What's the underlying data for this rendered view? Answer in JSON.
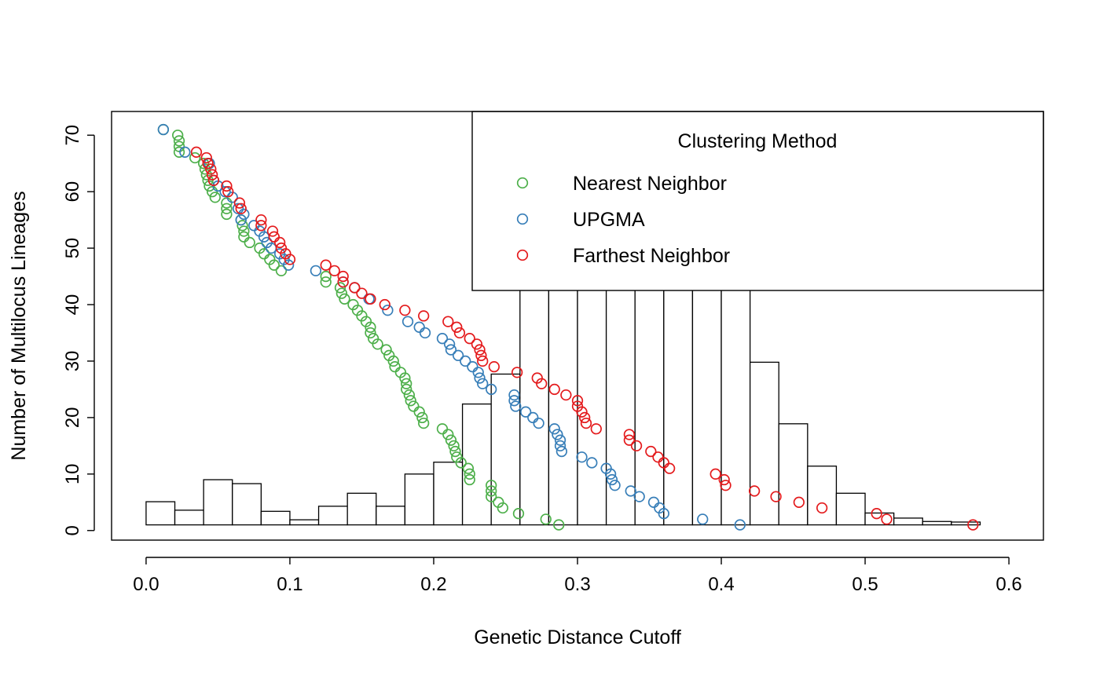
{
  "chart_data": {
    "type": "scatter",
    "title": "",
    "xlabel": "Genetic Distance Cutoff",
    "ylabel": "Number of Multilocus Lineages",
    "xlim": [
      -0.024,
      0.624
    ],
    "ylim": [
      -1.7,
      74.2
    ],
    "x_ticks": [
      0.0,
      0.1,
      0.2,
      0.3,
      0.4,
      0.5,
      0.6
    ],
    "x_tick_labels": [
      "0.0",
      "0.1",
      "0.2",
      "0.3",
      "0.4",
      "0.5",
      "0.6"
    ],
    "y_ticks": [
      0,
      10,
      20,
      30,
      40,
      50,
      60,
      70
    ],
    "y_tick_labels": [
      "0",
      "10",
      "20",
      "30",
      "40",
      "50",
      "60",
      "70"
    ],
    "grid": false,
    "legend": {
      "title": "Clustering Method",
      "placement": "top-right",
      "entries": [
        "Nearest Neighbor",
        "UPGMA",
        "Farthest Neighbor"
      ]
    },
    "histogram": {
      "bin_width": 0.02,
      "bin_starts": [
        0.0,
        0.02,
        0.04,
        0.06,
        0.08,
        0.1,
        0.12,
        0.14,
        0.16,
        0.18,
        0.2,
        0.22,
        0.24,
        0.26,
        0.28,
        0.3,
        0.32,
        0.34,
        0.36,
        0.38,
        0.4,
        0.42,
        0.44,
        0.46,
        0.48,
        0.5,
        0.52,
        0.54,
        0.56
      ],
      "baseline": 1,
      "tops": [
        5.1,
        3.6,
        9.0,
        8.3,
        3.4,
        1.9,
        4.3,
        6.6,
        4.3,
        10.0,
        12.1,
        22.4,
        27.7,
        43,
        43,
        43,
        43,
        43,
        43,
        43,
        43,
        29.8,
        18.9,
        11.4,
        6.6,
        3.1,
        2.2,
        1.6,
        1.5
      ],
      "note_extends_behind_legend": true
    },
    "series": [
      {
        "name": "Nearest Neighbor",
        "color": "#4DAF4A",
        "points": [
          [
            0.012,
            71
          ],
          [
            0.022,
            70
          ],
          [
            0.023,
            69
          ],
          [
            0.023,
            68
          ],
          [
            0.023,
            67
          ],
          [
            0.034,
            66
          ],
          [
            0.04,
            65
          ],
          [
            0.041,
            64
          ],
          [
            0.042,
            63
          ],
          [
            0.043,
            62
          ],
          [
            0.044,
            61
          ],
          [
            0.046,
            60
          ],
          [
            0.048,
            59
          ],
          [
            0.056,
            58
          ],
          [
            0.056,
            57
          ],
          [
            0.056,
            56
          ],
          [
            0.066,
            55
          ],
          [
            0.067,
            54
          ],
          [
            0.068,
            53
          ],
          [
            0.068,
            52
          ],
          [
            0.072,
            51
          ],
          [
            0.079,
            50
          ],
          [
            0.082,
            49
          ],
          [
            0.086,
            48
          ],
          [
            0.089,
            47
          ],
          [
            0.094,
            46
          ],
          [
            0.125,
            45
          ],
          [
            0.125,
            44
          ],
          [
            0.135,
            43
          ],
          [
            0.136,
            42
          ],
          [
            0.138,
            41
          ],
          [
            0.144,
            40
          ],
          [
            0.147,
            39
          ],
          [
            0.15,
            38
          ],
          [
            0.153,
            37
          ],
          [
            0.156,
            36
          ],
          [
            0.156,
            35
          ],
          [
            0.158,
            34
          ],
          [
            0.161,
            33
          ],
          [
            0.167,
            32
          ],
          [
            0.169,
            31
          ],
          [
            0.172,
            30
          ],
          [
            0.173,
            29
          ],
          [
            0.177,
            28
          ],
          [
            0.18,
            27
          ],
          [
            0.181,
            26
          ],
          [
            0.181,
            25
          ],
          [
            0.183,
            24
          ],
          [
            0.184,
            23
          ],
          [
            0.186,
            22
          ],
          [
            0.19,
            21
          ],
          [
            0.192,
            20
          ],
          [
            0.193,
            19
          ],
          [
            0.206,
            18
          ],
          [
            0.21,
            17
          ],
          [
            0.212,
            16
          ],
          [
            0.214,
            15
          ],
          [
            0.215,
            14
          ],
          [
            0.216,
            13
          ],
          [
            0.219,
            12
          ],
          [
            0.224,
            11
          ],
          [
            0.225,
            10
          ],
          [
            0.225,
            9
          ],
          [
            0.24,
            8
          ],
          [
            0.24,
            7
          ],
          [
            0.24,
            6
          ],
          [
            0.245,
            5
          ],
          [
            0.248,
            4
          ],
          [
            0.259,
            3
          ],
          [
            0.278,
            2
          ],
          [
            0.287,
            1
          ]
        ]
      },
      {
        "name": "UPGMA",
        "color": "#377EB8",
        "points": [
          [
            0.012,
            71
          ],
          [
            0.027,
            67
          ],
          [
            0.044,
            65
          ],
          [
            0.047,
            62
          ],
          [
            0.05,
            61
          ],
          [
            0.055,
            60
          ],
          [
            0.06,
            59
          ],
          [
            0.064,
            57
          ],
          [
            0.068,
            56
          ],
          [
            0.066,
            55
          ],
          [
            0.075,
            54
          ],
          [
            0.079,
            53
          ],
          [
            0.082,
            52
          ],
          [
            0.084,
            51
          ],
          [
            0.087,
            50
          ],
          [
            0.093,
            49
          ],
          [
            0.096,
            48
          ],
          [
            0.099,
            47
          ],
          [
            0.118,
            46
          ],
          [
            0.137,
            44
          ],
          [
            0.145,
            43
          ],
          [
            0.155,
            41
          ],
          [
            0.168,
            39
          ],
          [
            0.182,
            37
          ],
          [
            0.19,
            36
          ],
          [
            0.194,
            35
          ],
          [
            0.206,
            34
          ],
          [
            0.211,
            33
          ],
          [
            0.212,
            32
          ],
          [
            0.217,
            31
          ],
          [
            0.222,
            30
          ],
          [
            0.227,
            29
          ],
          [
            0.231,
            28
          ],
          [
            0.232,
            27
          ],
          [
            0.234,
            26
          ],
          [
            0.24,
            25
          ],
          [
            0.256,
            24
          ],
          [
            0.256,
            23
          ],
          [
            0.257,
            22
          ],
          [
            0.264,
            21
          ],
          [
            0.269,
            20
          ],
          [
            0.273,
            19
          ],
          [
            0.284,
            18
          ],
          [
            0.286,
            17
          ],
          [
            0.288,
            16
          ],
          [
            0.288,
            15
          ],
          [
            0.289,
            14
          ],
          [
            0.303,
            13
          ],
          [
            0.31,
            12
          ],
          [
            0.32,
            11
          ],
          [
            0.323,
            10
          ],
          [
            0.324,
            9
          ],
          [
            0.326,
            8
          ],
          [
            0.337,
            7
          ],
          [
            0.343,
            6
          ],
          [
            0.353,
            5
          ],
          [
            0.357,
            4
          ],
          [
            0.36,
            3
          ],
          [
            0.387,
            2
          ],
          [
            0.413,
            1
          ]
        ]
      },
      {
        "name": "Farthest Neighbor",
        "color": "#E41A1C",
        "points": [
          [
            0.035,
            67
          ],
          [
            0.042,
            66
          ],
          [
            0.043,
            65
          ],
          [
            0.045,
            64
          ],
          [
            0.046,
            63
          ],
          [
            0.047,
            62
          ],
          [
            0.056,
            61
          ],
          [
            0.057,
            60
          ],
          [
            0.065,
            58
          ],
          [
            0.066,
            57
          ],
          [
            0.08,
            55
          ],
          [
            0.08,
            54
          ],
          [
            0.088,
            53
          ],
          [
            0.089,
            52
          ],
          [
            0.093,
            51
          ],
          [
            0.094,
            50
          ],
          [
            0.097,
            49
          ],
          [
            0.1,
            48
          ],
          [
            0.125,
            47
          ],
          [
            0.131,
            46
          ],
          [
            0.137,
            45
          ],
          [
            0.137,
            44
          ],
          [
            0.145,
            43
          ],
          [
            0.15,
            42
          ],
          [
            0.156,
            41
          ],
          [
            0.166,
            40
          ],
          [
            0.18,
            39
          ],
          [
            0.193,
            38
          ],
          [
            0.21,
            37
          ],
          [
            0.216,
            36
          ],
          [
            0.218,
            35
          ],
          [
            0.225,
            34
          ],
          [
            0.23,
            33
          ],
          [
            0.232,
            32
          ],
          [
            0.233,
            31
          ],
          [
            0.234,
            30
          ],
          [
            0.242,
            29
          ],
          [
            0.258,
            28
          ],
          [
            0.272,
            27
          ],
          [
            0.275,
            26
          ],
          [
            0.284,
            25
          ],
          [
            0.292,
            24
          ],
          [
            0.3,
            23
          ],
          [
            0.3,
            22
          ],
          [
            0.303,
            21
          ],
          [
            0.305,
            20
          ],
          [
            0.306,
            19
          ],
          [
            0.313,
            18
          ],
          [
            0.336,
            17
          ],
          [
            0.336,
            16
          ],
          [
            0.341,
            15
          ],
          [
            0.351,
            14
          ],
          [
            0.356,
            13
          ],
          [
            0.36,
            12
          ],
          [
            0.364,
            11
          ],
          [
            0.396,
            10
          ],
          [
            0.402,
            9
          ],
          [
            0.403,
            8
          ],
          [
            0.423,
            7
          ],
          [
            0.438,
            6
          ],
          [
            0.454,
            5
          ],
          [
            0.47,
            4
          ],
          [
            0.508,
            3
          ],
          [
            0.515,
            2
          ],
          [
            0.575,
            1
          ]
        ]
      }
    ]
  }
}
